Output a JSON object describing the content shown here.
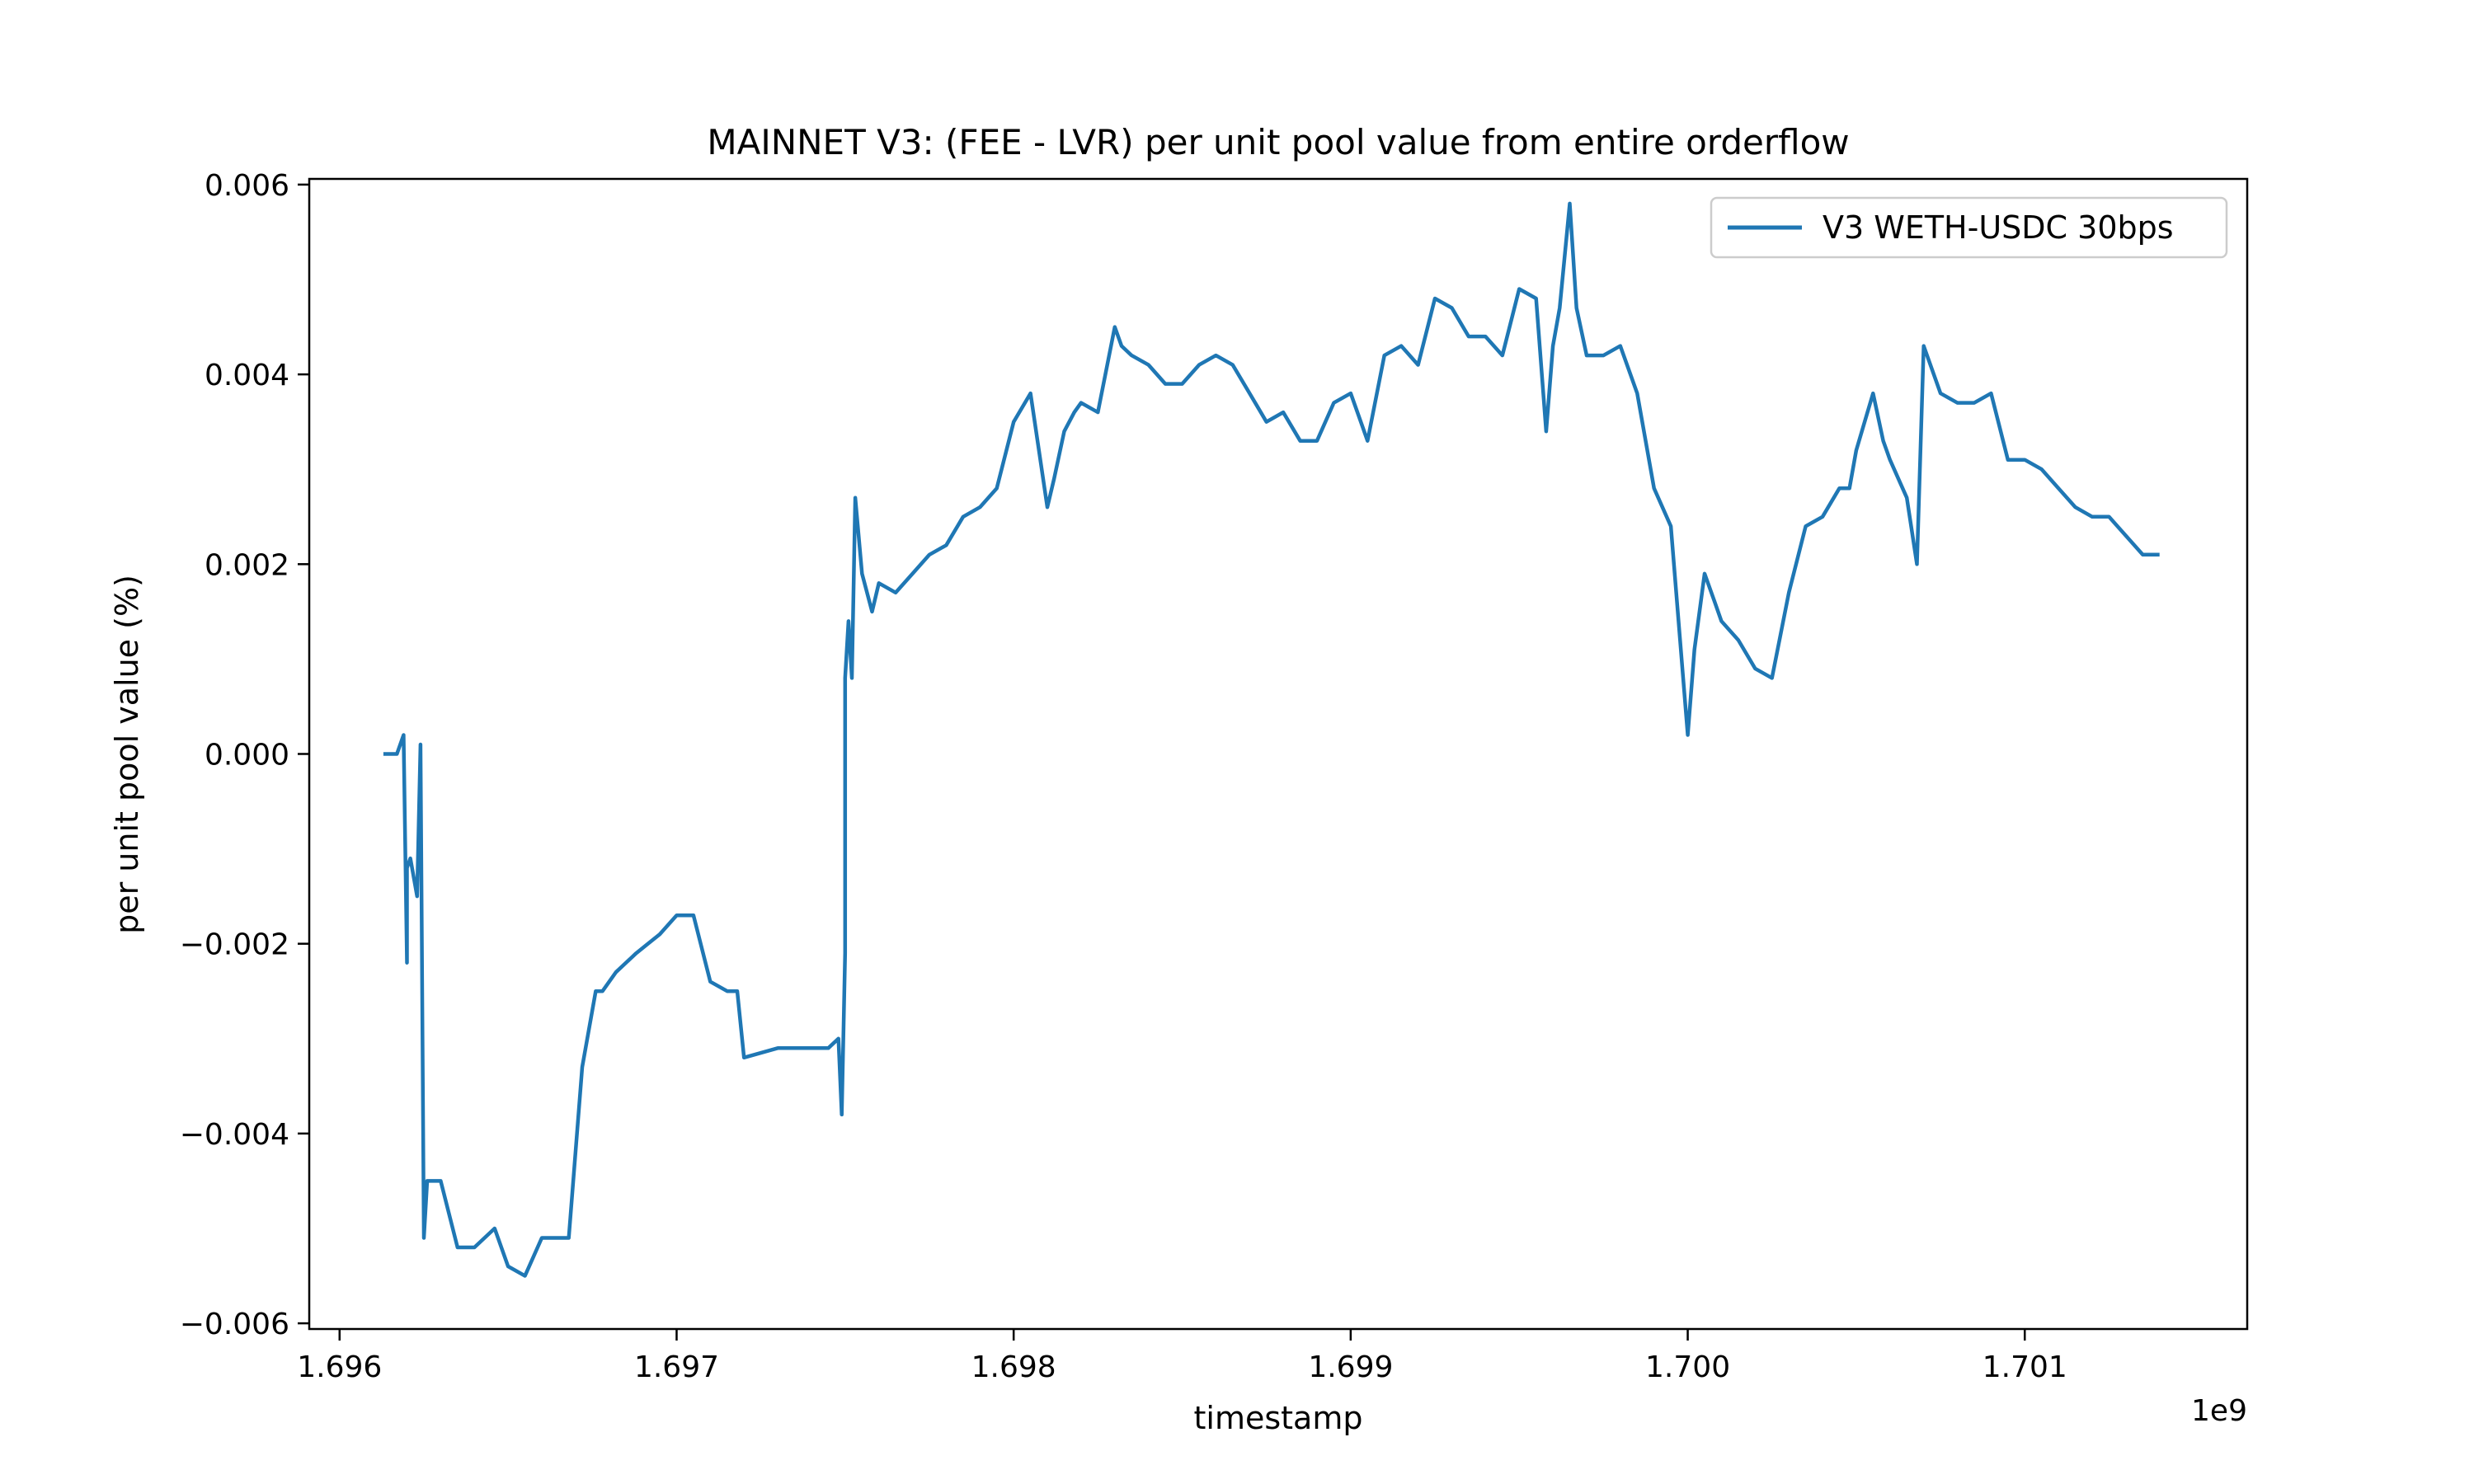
{
  "chart_data": {
    "type": "line",
    "title": "MAINNET V3: (FEE - LVR) per unit pool value from entire orderflow",
    "xlabel": "timestamp",
    "ylabel": "per unit pool value (%)",
    "x_offset_label": "1e9",
    "x_ticks": [
      1.696,
      1.697,
      1.698,
      1.699,
      1.7,
      1.701
    ],
    "x_tick_labels": [
      "1.696",
      "1.697",
      "1.698",
      "1.699",
      "1.700",
      "1.701"
    ],
    "y_ticks": [
      -0.006,
      -0.004,
      -0.002,
      0.0,
      0.002,
      0.004,
      0.006
    ],
    "y_tick_labels": [
      "−0.006",
      "−0.004",
      "−0.002",
      "0.000",
      "0.002",
      "0.004",
      "0.006"
    ],
    "xlim": [
      1.69591,
      1.70166
    ],
    "ylim": [
      -0.00606,
      0.00606
    ],
    "legend_position": "top-right",
    "grid": false,
    "series": [
      {
        "name": "V3 WETH-USDC 30bps",
        "color": "#1f77b4",
        "x": [
          1.69613,
          1.69617,
          1.69619,
          1.6962,
          1.6962,
          1.69621,
          1.69623,
          1.69624,
          1.69625,
          1.69626,
          1.69627,
          1.69628,
          1.69629,
          1.6963,
          1.69635,
          1.6964,
          1.69646,
          1.6965,
          1.69655,
          1.6966,
          1.69664,
          1.69668,
          1.69672,
          1.69676,
          1.69678,
          1.69682,
          1.69688,
          1.69695,
          1.697,
          1.69705,
          1.6971,
          1.69715,
          1.69718,
          1.6972,
          1.6973,
          1.69735,
          1.6974,
          1.69745,
          1.69748,
          1.69749,
          1.6975,
          1.6975,
          1.69751,
          1.69752,
          1.69753,
          1.69755,
          1.69758,
          1.6976,
          1.69765,
          1.6977,
          1.69775,
          1.6978,
          1.69785,
          1.6979,
          1.69795,
          1.698,
          1.69805,
          1.6981,
          1.69812,
          1.69815,
          1.69818,
          1.6982,
          1.69825,
          1.6983,
          1.69832,
          1.69835,
          1.6984,
          1.69845,
          1.6985,
          1.69855,
          1.6986,
          1.69865,
          1.6987,
          1.69875,
          1.6988,
          1.69885,
          1.6989,
          1.69895,
          1.699,
          1.69905,
          1.6991,
          1.69915,
          1.6992,
          1.69925,
          1.6993,
          1.69935,
          1.6994,
          1.69945,
          1.6995,
          1.69955,
          1.69958,
          1.6996,
          1.69962,
          1.69965,
          1.69967,
          1.6997,
          1.69975,
          1.6998,
          1.69985,
          1.6999,
          1.69995,
          1.7,
          1.70002,
          1.70005,
          1.70008,
          1.7001,
          1.70015,
          1.7002,
          1.70025,
          1.7003,
          1.70035,
          1.7004,
          1.70045,
          1.70048,
          1.7005,
          1.70055,
          1.70058,
          1.7006,
          1.70065,
          1.70068,
          1.7007,
          1.70075,
          1.7008,
          1.70085,
          1.7009,
          1.70095,
          1.701,
          1.70105,
          1.7011,
          1.70115,
          1.7012,
          1.70125,
          1.70135,
          1.7014
        ],
        "y": [
          0.0,
          0.0,
          0.0002,
          -0.0022,
          -0.0012,
          -0.0011,
          -0.0015,
          0.0001,
          -0.0051,
          -0.0045,
          -0.0045,
          -0.0045,
          -0.0045,
          -0.0045,
          -0.0052,
          -0.0052,
          -0.005,
          -0.0054,
          -0.0055,
          -0.0051,
          -0.0051,
          -0.0051,
          -0.0033,
          -0.0025,
          -0.0025,
          -0.0023,
          -0.0021,
          -0.0019,
          -0.0017,
          -0.0017,
          -0.0024,
          -0.0025,
          -0.0025,
          -0.0032,
          -0.0031,
          -0.0031,
          -0.0031,
          -0.0031,
          -0.003,
          -0.0038,
          -0.0021,
          0.0008,
          0.0014,
          0.0008,
          0.0027,
          0.0019,
          0.0015,
          0.0018,
          0.0017,
          0.0019,
          0.0021,
          0.0022,
          0.0025,
          0.0026,
          0.0028,
          0.0035,
          0.0038,
          0.0026,
          0.0029,
          0.0034,
          0.0036,
          0.0037,
          0.0036,
          0.0045,
          0.0043,
          0.0042,
          0.0041,
          0.0039,
          0.0039,
          0.0041,
          0.0042,
          0.0041,
          0.0038,
          0.0035,
          0.0036,
          0.0033,
          0.0033,
          0.0037,
          0.0038,
          0.0033,
          0.0042,
          0.0043,
          0.0041,
          0.0048,
          0.0047,
          0.0044,
          0.0044,
          0.0042,
          0.0049,
          0.0048,
          0.0034,
          0.0043,
          0.0047,
          0.0058,
          0.0047,
          0.0042,
          0.0042,
          0.0043,
          0.0038,
          0.0028,
          0.0024,
          0.0002,
          0.0011,
          0.0019,
          0.0016,
          0.0014,
          0.0012,
          0.0009,
          0.0008,
          0.0017,
          0.0024,
          0.0025,
          0.0028,
          0.0028,
          0.0032,
          0.0038,
          0.0033,
          0.0031,
          0.0027,
          0.002,
          0.0043,
          0.0038,
          0.0037,
          0.0037,
          0.0038,
          0.0031,
          0.0031,
          0.003,
          0.0028,
          0.0026,
          0.0025,
          0.0025,
          0.0021,
          0.0021
        ]
      }
    ]
  }
}
